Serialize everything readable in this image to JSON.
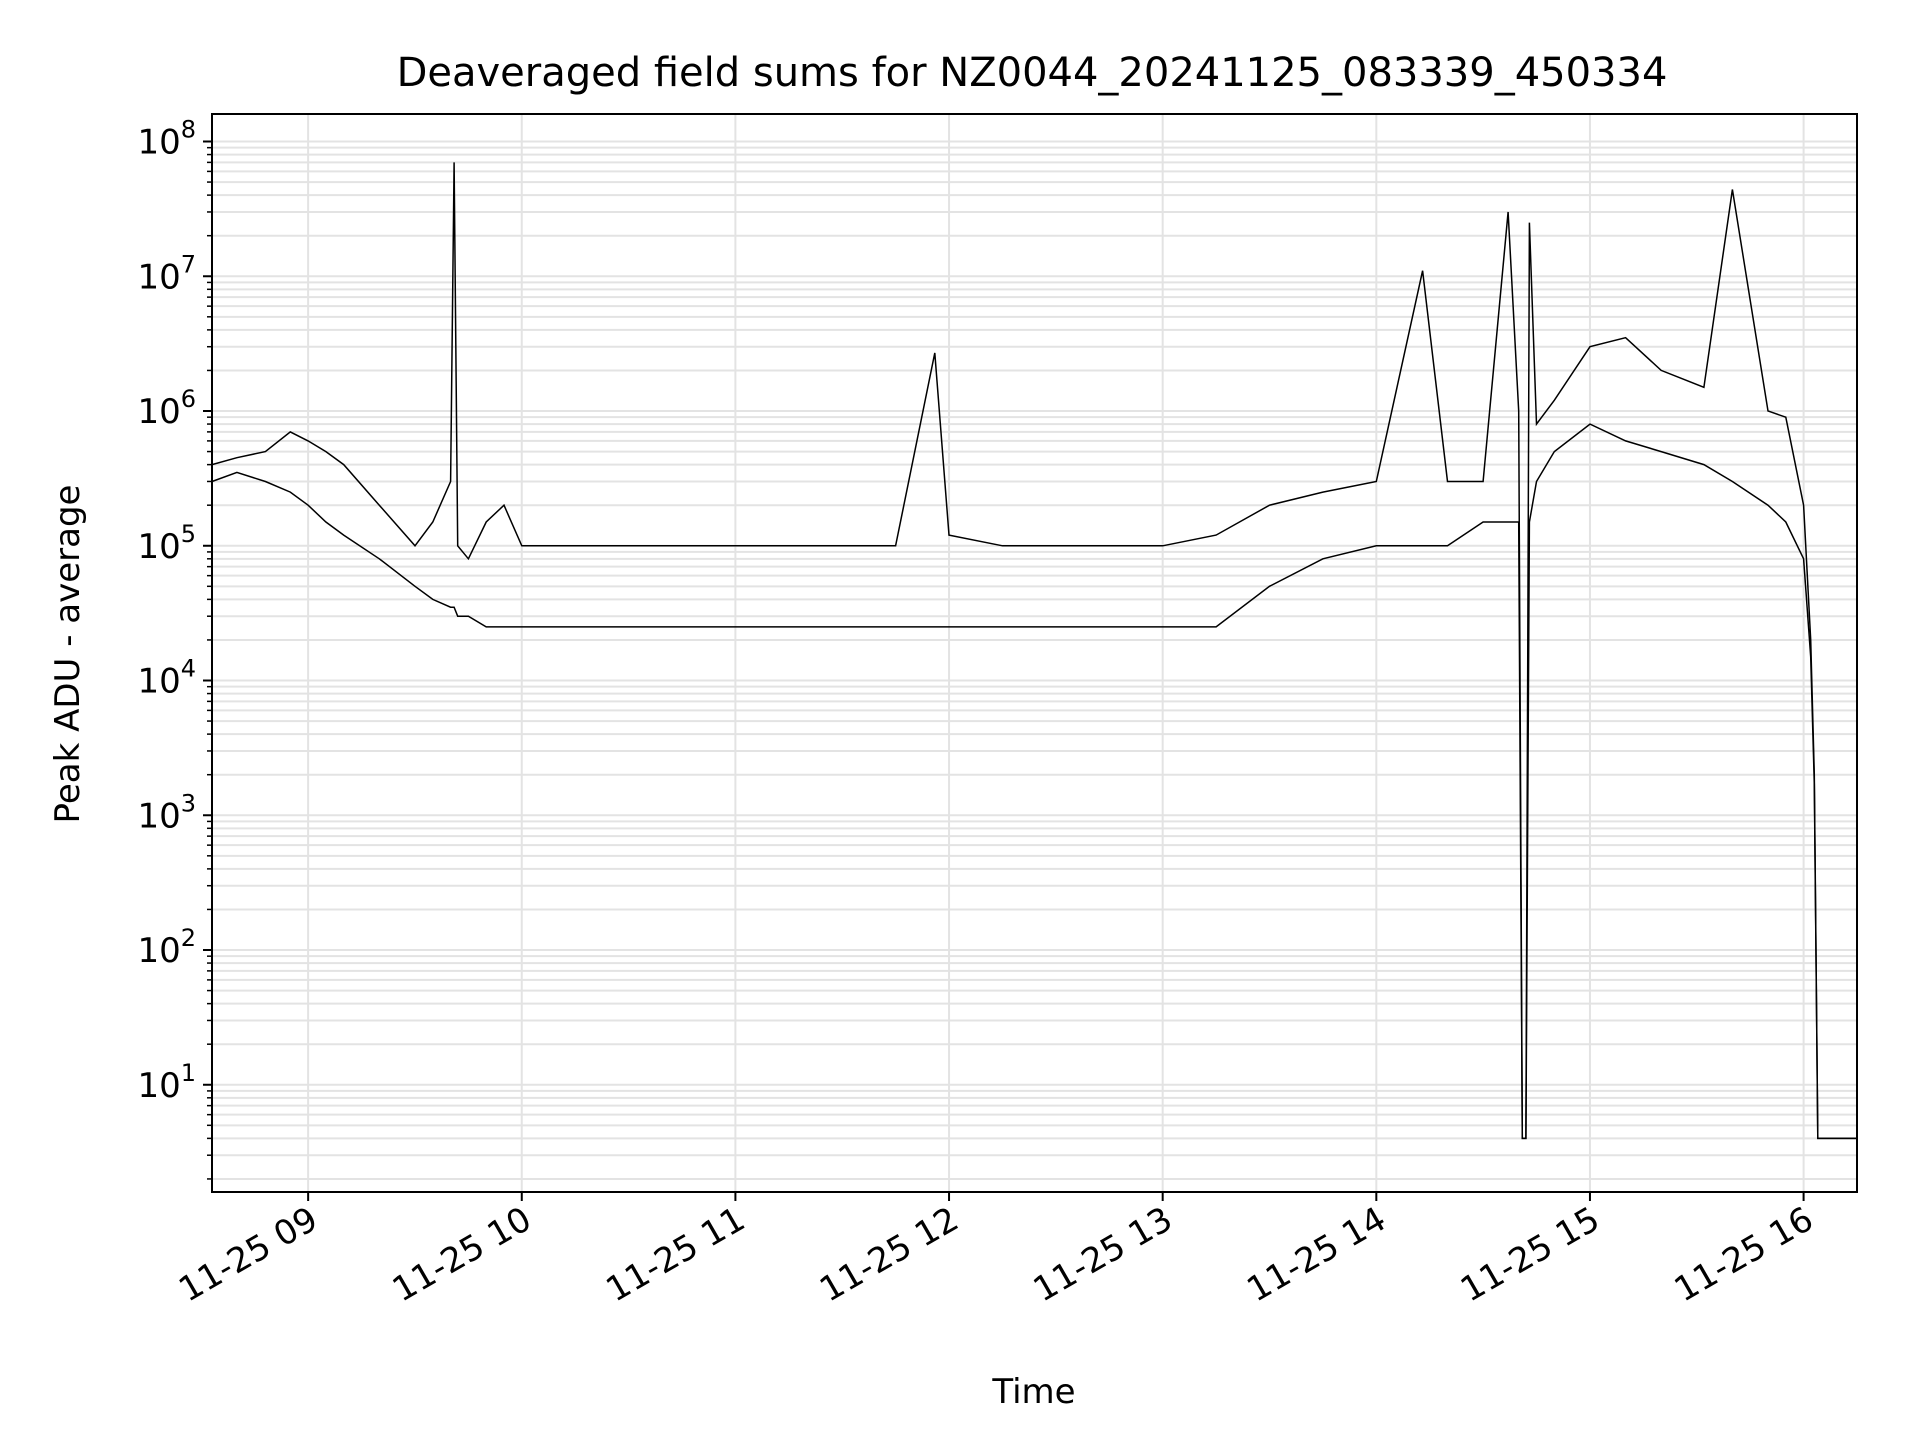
{
  "chart_data": {
    "type": "line",
    "title": "Deaveraged field sums for NZ0044_20241125_083339_450334",
    "xlabel": "Time",
    "ylabel": "Peak ADU - average",
    "yscale": "log",
    "ylim": [
      1.6,
      160000000
    ],
    "xlim": [
      "2024-11-25 08:33",
      "2024-11-25 16:15"
    ],
    "grid": true,
    "line_color": "#000000",
    "grid_color": "#e3e3e3",
    "x_ticks": [
      {
        "label": "11-25 09",
        "time": "2024-11-25 09:00"
      },
      {
        "label": "11-25 10",
        "time": "2024-11-25 10:00"
      },
      {
        "label": "11-25 11",
        "time": "2024-11-25 11:00"
      },
      {
        "label": "11-25 12",
        "time": "2024-11-25 12:00"
      },
      {
        "label": "11-25 13",
        "time": "2024-11-25 13:00"
      },
      {
        "label": "11-25 14",
        "time": "2024-11-25 14:00"
      },
      {
        "label": "11-25 15",
        "time": "2024-11-25 15:00"
      },
      {
        "label": "11-25 16",
        "time": "2024-11-25 16:00"
      }
    ],
    "y_ticks": [
      {
        "base": "10",
        "exp": "1",
        "value": 10
      },
      {
        "base": "10",
        "exp": "2",
        "value": 100
      },
      {
        "base": "10",
        "exp": "3",
        "value": 1000
      },
      {
        "base": "10",
        "exp": "4",
        "value": 10000
      },
      {
        "base": "10",
        "exp": "5",
        "value": 100000
      },
      {
        "base": "10",
        "exp": "6",
        "value": 1000000
      },
      {
        "base": "10",
        "exp": "7",
        "value": 10000000
      },
      {
        "base": "10",
        "exp": "8",
        "value": 100000000
      }
    ],
    "series": [
      {
        "x": [
          "2024-11-25 08:33",
          "2024-11-25 08:40",
          "2024-11-25 08:48",
          "2024-11-25 08:55",
          "2024-11-25 09:00",
          "2024-11-25 09:05",
          "2024-11-25 09:10",
          "2024-11-25 09:20",
          "2024-11-25 09:30",
          "2024-11-25 09:35",
          "2024-11-25 09:40",
          "2024-11-25 09:41",
          "2024-11-25 09:42",
          "2024-11-25 09:45",
          "2024-11-25 09:50",
          "2024-11-25 09:55",
          "2024-11-25 10:00",
          "2024-11-25 10:15",
          "2024-11-25 10:30",
          "2024-11-25 10:45",
          "2024-11-25 11:00",
          "2024-11-25 11:15",
          "2024-11-25 11:30",
          "2024-11-25 11:45",
          "2024-11-25 11:56",
          "2024-11-25 12:00",
          "2024-11-25 12:15",
          "2024-11-25 12:30",
          "2024-11-25 12:45",
          "2024-11-25 13:00",
          "2024-11-25 13:15",
          "2024-11-25 13:30",
          "2024-11-25 13:45",
          "2024-11-25 14:00",
          "2024-11-25 14:13",
          "2024-11-25 14:20",
          "2024-11-25 14:30",
          "2024-11-25 14:37",
          "2024-11-25 14:40",
          "2024-11-25 14:41",
          "2024-11-25 14:42",
          "2024-11-25 14:43",
          "2024-11-25 14:45",
          "2024-11-25 14:50",
          "2024-11-25 15:00",
          "2024-11-25 15:10",
          "2024-11-25 15:20",
          "2024-11-25 15:32",
          "2024-11-25 15:40",
          "2024-11-25 15:50",
          "2024-11-25 15:55",
          "2024-11-25 16:00",
          "2024-11-25 16:02",
          "2024-11-25 16:03",
          "2024-11-25 16:04",
          "2024-11-25 16:05",
          "2024-11-25 16:10",
          "2024-11-25 16:15"
        ],
        "y": [
          400000,
          450000,
          500000,
          700000,
          600000,
          500000,
          400000,
          200000,
          100000,
          150000,
          300000,
          70000000,
          100000,
          80000,
          150000,
          200000,
          100000,
          100000,
          100000,
          100000,
          100000,
          100000,
          100000,
          100000,
          2700000,
          120000,
          100000,
          100000,
          100000,
          100000,
          120000,
          200000,
          250000,
          300000,
          11000000,
          300000,
          300000,
          30000000,
          1000000,
          4,
          4,
          25000000,
          800000,
          1200000,
          3000000,
          3500000,
          2000000,
          1500000,
          44000000,
          1000000,
          900000,
          200000,
          20000,
          2000,
          4,
          4,
          4,
          4
        ],
        "y_min_envelope": [
          300000,
          350000,
          300000,
          250000,
          200000,
          150000,
          120000,
          80000,
          50000,
          40000,
          35000,
          35000,
          30000,
          30000,
          25000,
          25000,
          25000,
          25000,
          25000,
          25000,
          25000,
          25000,
          25000,
          25000,
          25000,
          25000,
          25000,
          25000,
          25000,
          25000,
          25000,
          50000,
          80000,
          100000,
          100000,
          100000,
          150000,
          150000,
          150000,
          4,
          4,
          150000,
          300000,
          500000,
          800000,
          600000,
          500000,
          400000,
          300000,
          200000,
          150000,
          80000,
          15000,
          1700,
          4,
          4,
          4,
          4
        ]
      }
    ]
  }
}
